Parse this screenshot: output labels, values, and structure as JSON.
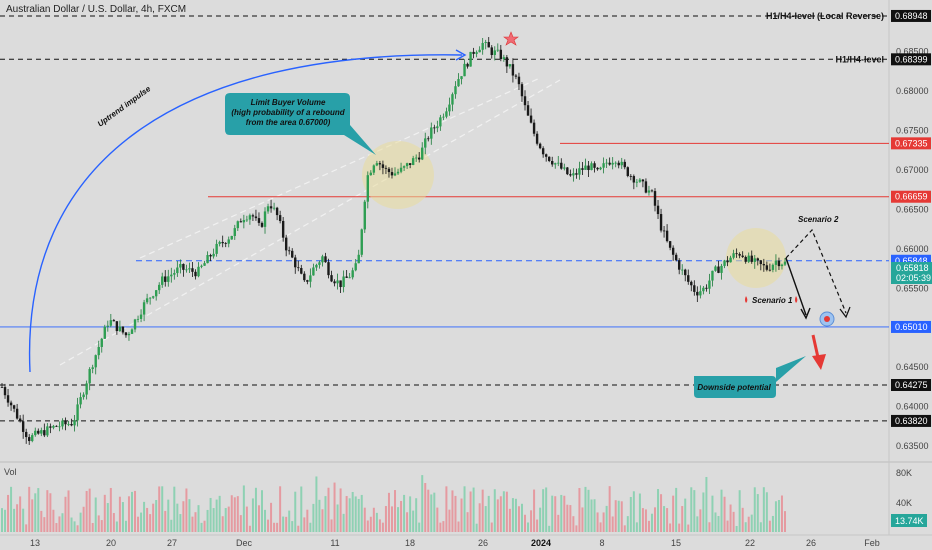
{
  "chart_data": {
    "type": "candlestick",
    "title": "Australian Dollar / U.S. Dollar, 4h, FXCM",
    "ylim": [
      0.633,
      0.6915
    ],
    "y_ticks": [
      0.635,
      0.64,
      0.645,
      0.655,
      0.66,
      0.665,
      0.67,
      0.675,
      0.68,
      0.685
    ],
    "x_ticks": [
      "13",
      "20",
      "27",
      "Dec",
      "11",
      "18",
      "26",
      "2024",
      "8",
      "15",
      "22",
      "26",
      "Feb"
    ],
    "levels": [
      {
        "label": "H1/H4-level (Local Reverse)",
        "value": "0.68948",
        "y": 0.68948,
        "style": "dashed-black",
        "badge": "#111111"
      },
      {
        "label": "H1/H4-level",
        "value": "0.68399",
        "y": 0.68399,
        "style": "dashed-black",
        "badge": "#111111"
      },
      {
        "label": "",
        "value": "0.67335",
        "y": 0.67335,
        "style": "solid-red",
        "badge": "#e53935"
      },
      {
        "label": "",
        "value": "0.66659",
        "y": 0.66659,
        "style": "solid-red",
        "badge": "#e53935"
      },
      {
        "label": "",
        "value": "0.65848",
        "y": 0.65848,
        "style": "dashed-blue",
        "badge": "#2962ff"
      },
      {
        "label": "",
        "value": "0.65010",
        "y": 0.6501,
        "style": "solid-blue",
        "badge": "#2962ff"
      },
      {
        "label": "",
        "value": "0.64275",
        "y": 0.64275,
        "style": "dashed-black",
        "badge": "#111111"
      },
      {
        "label": "",
        "value": "0.63820",
        "y": 0.6382,
        "style": "dashed-black",
        "badge": "#111111"
      }
    ],
    "current_price": {
      "value": "0.65818",
      "countdown": "02:05:39"
    },
    "volume": {
      "label": "Vol",
      "ticks": [
        "80K",
        "40K"
      ],
      "current": "13.74K"
    },
    "annotations": {
      "uptrend": "Uptrend impulse",
      "buyer_line1": "Limit Buyer Volume",
      "buyer_line2": "(high probability of a rebound",
      "buyer_line3": "from the area 0.67000)",
      "scenario1": "Scenario 1",
      "scenario2": "Scenario 2",
      "downside": "Downside potential"
    },
    "price_path": [
      [
        0,
        0.6425
      ],
      [
        6,
        0.636
      ],
      [
        12,
        0.6375
      ],
      [
        16,
        0.638
      ],
      [
        20,
        0.645
      ],
      [
        24,
        0.651
      ],
      [
        28,
        0.649
      ],
      [
        32,
        0.653
      ],
      [
        36,
        0.656
      ],
      [
        40,
        0.6575
      ],
      [
        44,
        0.657
      ],
      [
        48,
        0.66
      ],
      [
        52,
        0.662
      ],
      [
        54,
        0.664
      ],
      [
        56,
        0.6645
      ],
      [
        58,
        0.6625
      ],
      [
        60,
        0.666
      ],
      [
        62,
        0.664
      ],
      [
        64,
        0.66
      ],
      [
        66,
        0.658
      ],
      [
        68,
        0.6555
      ],
      [
        70,
        0.6575
      ],
      [
        72,
        0.659
      ],
      [
        74,
        0.6565
      ],
      [
        76,
        0.6555
      ],
      [
        78,
        0.6565
      ],
      [
        80,
        0.658
      ],
      [
        82,
        0.669
      ],
      [
        84,
        0.6715
      ],
      [
        86,
        0.67
      ],
      [
        88,
        0.6695
      ],
      [
        90,
        0.67
      ],
      [
        92,
        0.671
      ],
      [
        94,
        0.672
      ],
      [
        96,
        0.6745
      ],
      [
        98,
        0.676
      ],
      [
        100,
        0.678
      ],
      [
        102,
        0.681
      ],
      [
        104,
        0.683
      ],
      [
        106,
        0.685
      ],
      [
        108,
        0.686
      ],
      [
        110,
        0.685
      ],
      [
        112,
        0.6845
      ],
      [
        114,
        0.683
      ],
      [
        116,
        0.681
      ],
      [
        118,
        0.677
      ],
      [
        120,
        0.674
      ],
      [
        122,
        0.672
      ],
      [
        124,
        0.671
      ],
      [
        126,
        0.67
      ],
      [
        128,
        0.669
      ],
      [
        130,
        0.67
      ],
      [
        132,
        0.6705
      ],
      [
        134,
        0.6695
      ],
      [
        136,
        0.671
      ],
      [
        138,
        0.6715
      ],
      [
        140,
        0.67
      ],
      [
        142,
        0.669
      ],
      [
        144,
        0.668
      ],
      [
        146,
        0.667
      ],
      [
        148,
        0.663
      ],
      [
        150,
        0.66
      ],
      [
        152,
        0.658
      ],
      [
        154,
        0.656
      ],
      [
        156,
        0.6545
      ],
      [
        158,
        0.655
      ],
      [
        160,
        0.657
      ],
      [
        162,
        0.658
      ],
      [
        164,
        0.659
      ],
      [
        166,
        0.6595
      ],
      [
        168,
        0.6585
      ],
      [
        170,
        0.658
      ],
      [
        172,
        0.6575
      ],
      [
        174,
        0.6585
      ],
      [
        176,
        0.65818
      ]
    ]
  }
}
